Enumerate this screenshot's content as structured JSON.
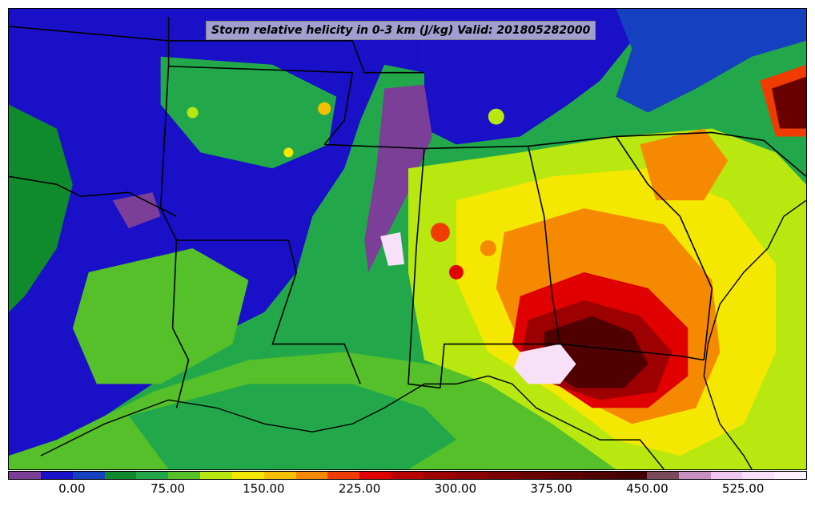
{
  "map": {
    "title": "Storm relative helicity in 0-3 km (J/kg) Valid: 201805282000",
    "region": "Southeastern United States",
    "field": "0-3 km storm relative helicity",
    "units": "J/kg",
    "valid_time": "201805282000"
  },
  "colorbar": {
    "colors": [
      "#7b3f98",
      "#1a10c8",
      "#1540c0",
      "#0f8a2c",
      "#22a84a",
      "#55c02a",
      "#b8e810",
      "#f5e800",
      "#f5c000",
      "#f58a00",
      "#f03c00",
      "#e00000",
      "#b80000",
      "#9c0000",
      "#8a0000",
      "#780000",
      "#680000",
      "#5c0000",
      "#500000",
      "#440000",
      "#7a4a5a",
      "#c890c0",
      "#f0c8f0",
      "#f8e0f8",
      "#fff0ff"
    ],
    "tick_labels": [
      "0.00",
      "75.00",
      "150.00",
      "225.00",
      "300.00",
      "375.00",
      "450.00",
      "525.00"
    ]
  }
}
